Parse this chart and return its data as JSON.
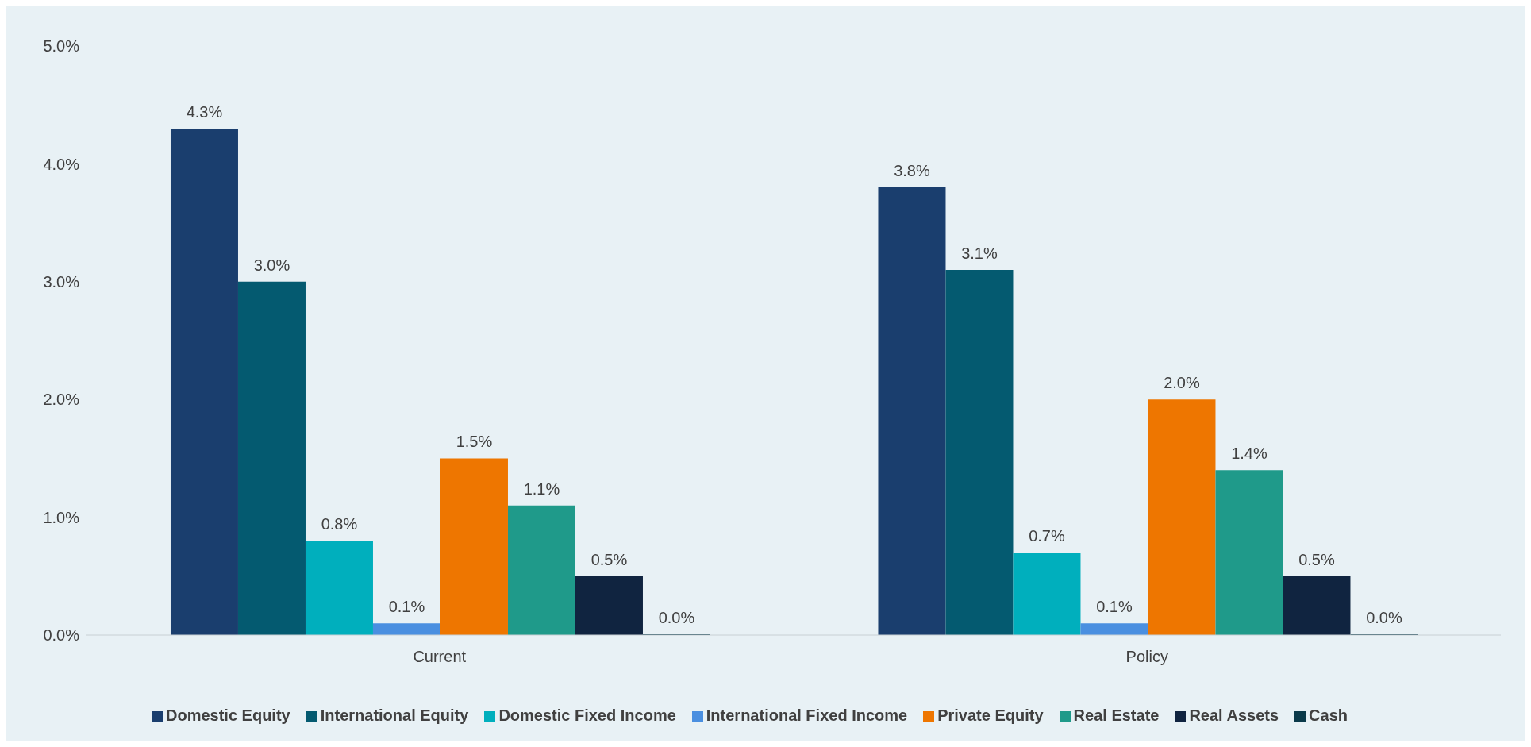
{
  "chart_data": {
    "type": "bar",
    "categories": [
      "Current",
      "Policy"
    ],
    "series": [
      {
        "name": "Domestic Equity",
        "color": "#1a3e6e",
        "values": [
          4.3,
          3.8
        ],
        "value_labels": [
          "4.3%",
          "3.8%"
        ]
      },
      {
        "name": "International Equity",
        "color": "#045a70",
        "values": [
          3.0,
          3.1
        ],
        "value_labels": [
          "3.0%",
          "3.1%"
        ]
      },
      {
        "name": "Domestic Fixed Income",
        "color": "#00afbd",
        "values": [
          0.8,
          0.7
        ],
        "value_labels": [
          "0.8%",
          "0.7%"
        ]
      },
      {
        "name": "International Fixed Income",
        "color": "#4a8fe0",
        "values": [
          0.1,
          0.1
        ],
        "value_labels": [
          "0.1%",
          "0.1%"
        ]
      },
      {
        "name": "Private Equity",
        "color": "#ee7600",
        "values": [
          1.5,
          2.0
        ],
        "value_labels": [
          "1.5%",
          "2.0%"
        ]
      },
      {
        "name": "Real Estate",
        "color": "#1f9a8a",
        "values": [
          1.1,
          1.4
        ],
        "value_labels": [
          "1.1%",
          "1.4%"
        ]
      },
      {
        "name": "Real Assets",
        "color": "#102440",
        "values": [
          0.5,
          0.5
        ],
        "value_labels": [
          "0.5%",
          "0.5%"
        ]
      },
      {
        "name": "Cash",
        "color": "#0b3a4a",
        "values": [
          0.0,
          0.0
        ],
        "value_labels": [
          "0.0%",
          "0.0%"
        ]
      }
    ],
    "ylim": [
      0,
      5
    ],
    "yticks": [
      {
        "value": 0,
        "label": "0.0%"
      },
      {
        "value": 1,
        "label": "1.0%"
      },
      {
        "value": 2,
        "label": "2.0%"
      },
      {
        "value": 3,
        "label": "3.0%"
      },
      {
        "value": 4,
        "label": "4.0%"
      },
      {
        "value": 5,
        "label": "5.0%"
      }
    ],
    "legend": "bottom"
  }
}
